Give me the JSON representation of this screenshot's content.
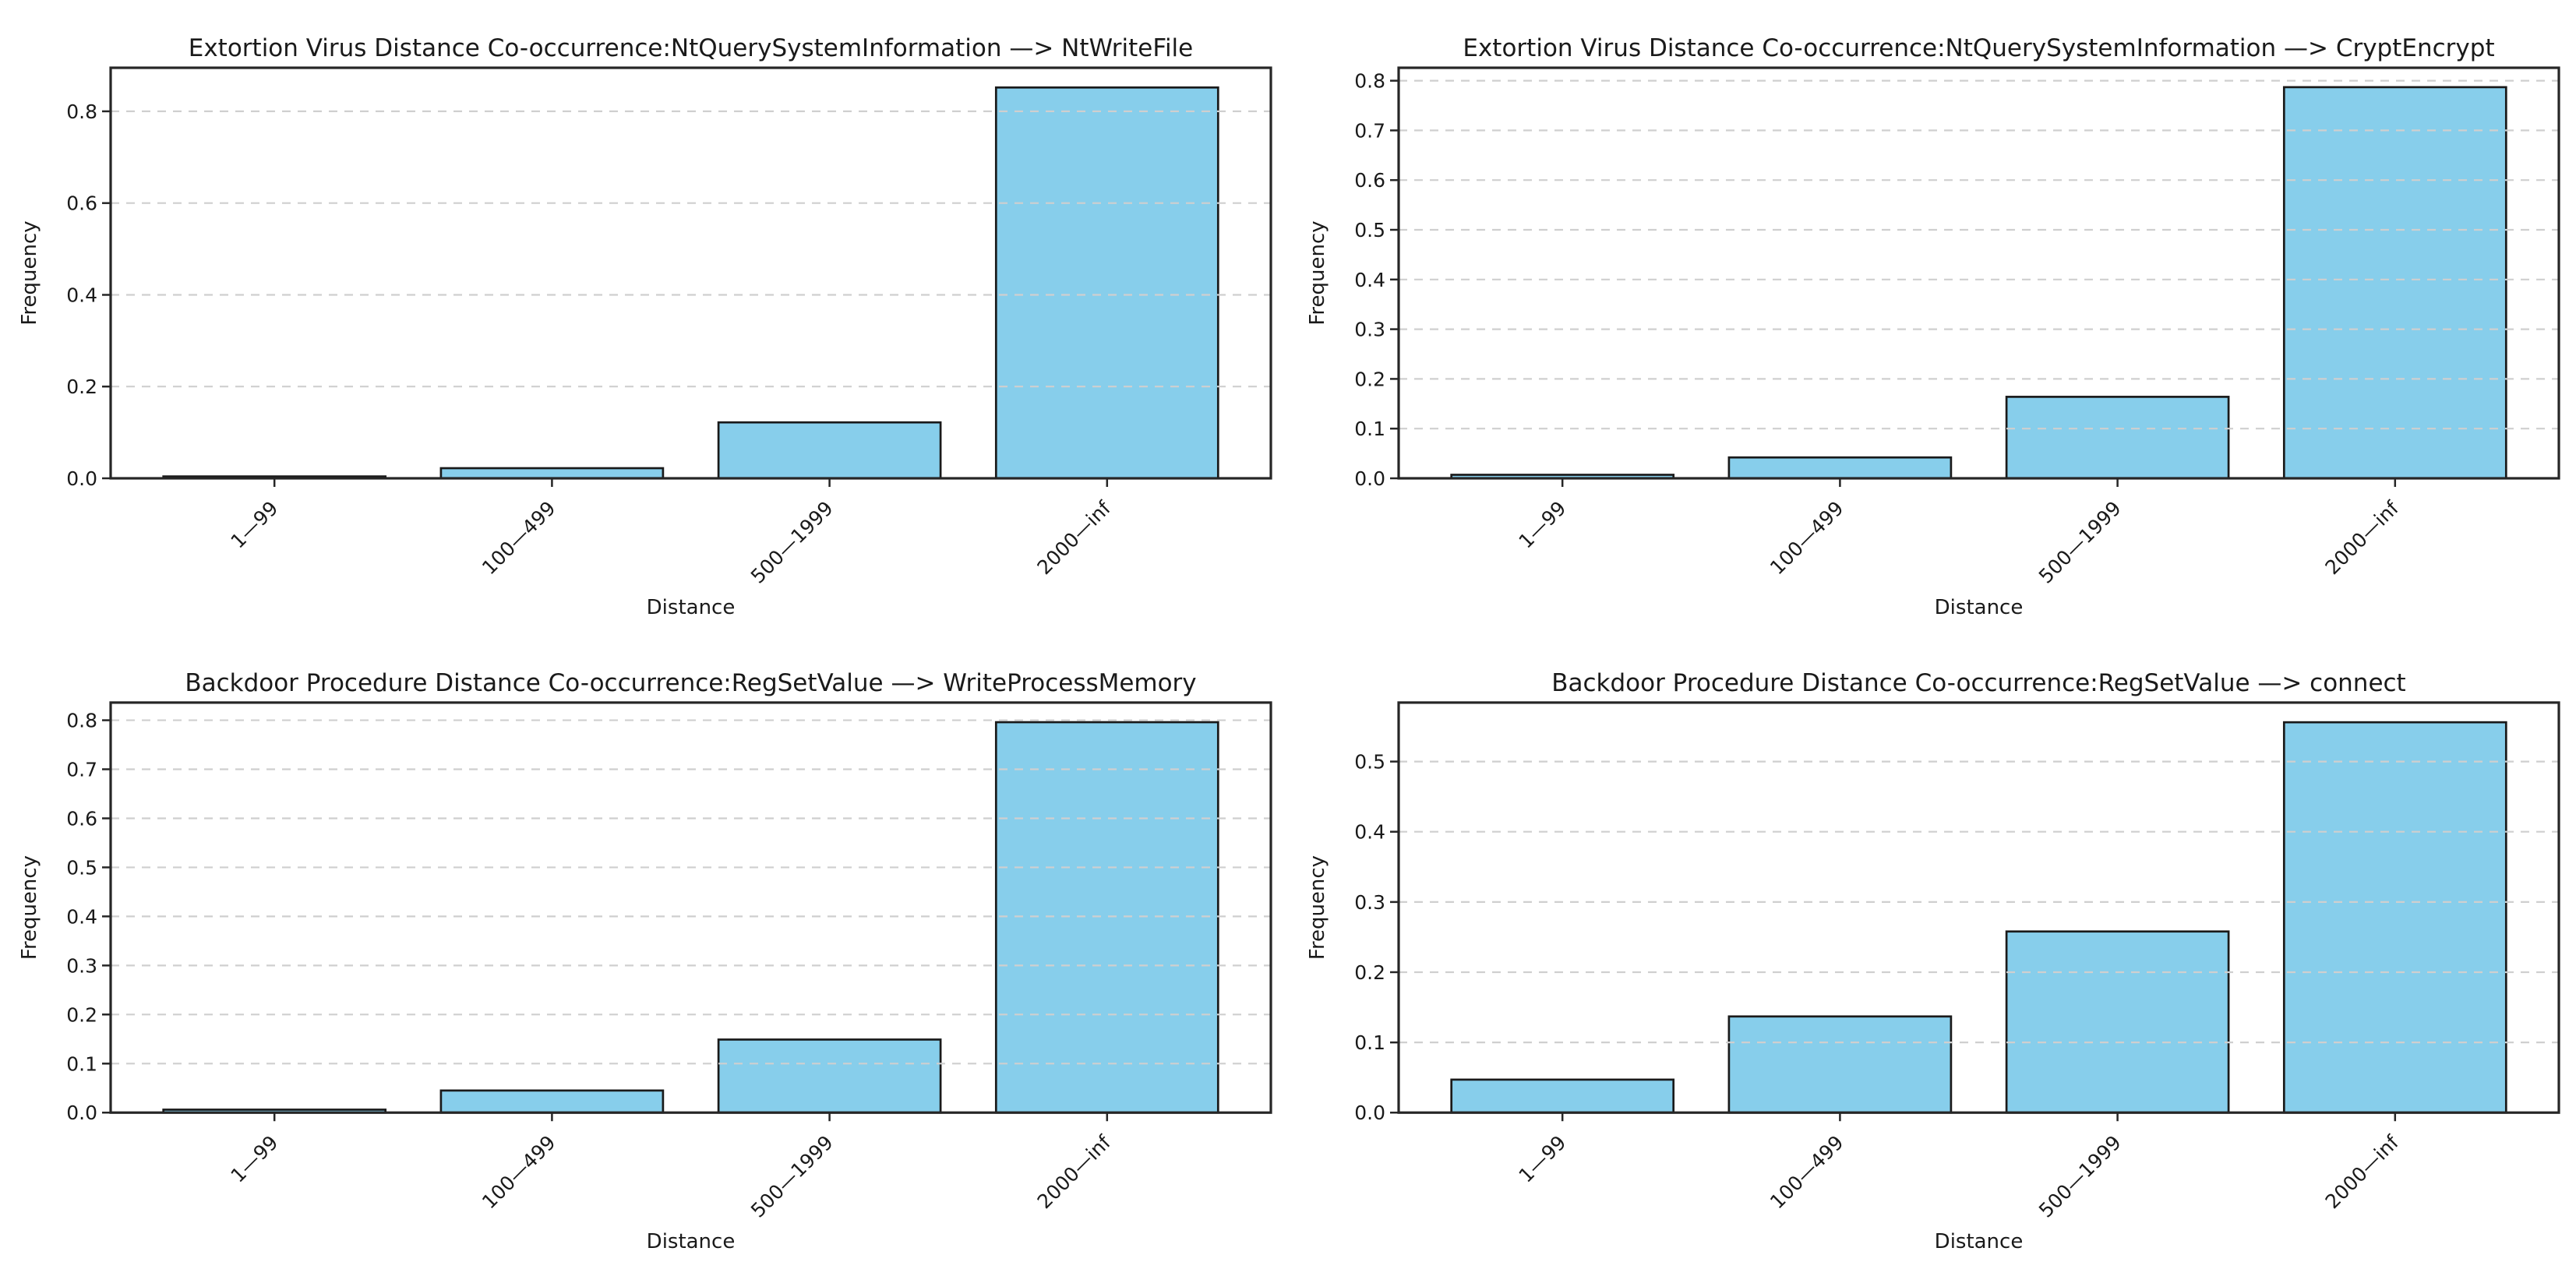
{
  "style": {
    "background": "#ffffff",
    "bar_fill": "#87CEEB",
    "bar_edge": "#1a1a1a",
    "grid_color": "#cfcfcf",
    "spine_color": "#262626",
    "text_color": "#1a1a1a"
  },
  "chart_data": [
    {
      "type": "bar",
      "title": "Extortion Virus Distance Co-occurrence:NtQuerySystemInformation —> NtWriteFile",
      "xlabel": "Distance",
      "ylabel": "Frequency",
      "categories": [
        "1—99",
        "100—499",
        "500—1999",
        "2000—inf"
      ],
      "values": [
        0.004,
        0.022,
        0.122,
        0.852
      ],
      "yticks": [
        0.0,
        0.2,
        0.4,
        0.6,
        0.8
      ],
      "ytick_labels": [
        "0.0",
        "0.2",
        "0.4",
        "0.6",
        "0.8"
      ],
      "ylim": [
        0,
        0.895
      ],
      "grid": true,
      "legend": "none"
    },
    {
      "type": "bar",
      "title": "Extortion Virus Distance Co-occurrence:NtQuerySystemInformation —> CryptEncrypt",
      "xlabel": "Distance",
      "ylabel": "Frequency",
      "categories": [
        "1—99",
        "100—499",
        "500—1999",
        "2000—inf"
      ],
      "values": [
        0.007,
        0.042,
        0.164,
        0.787
      ],
      "yticks": [
        0.0,
        0.1,
        0.2,
        0.3,
        0.4,
        0.5,
        0.6,
        0.7,
        0.8
      ],
      "ytick_labels": [
        "0.0",
        "0.1",
        "0.2",
        "0.3",
        "0.4",
        "0.5",
        "0.6",
        "0.7",
        "0.8"
      ],
      "ylim": [
        0,
        0.826
      ],
      "grid": true,
      "legend": "none"
    },
    {
      "type": "bar",
      "title": "Backdoor Procedure Distance Co-occurrence:RegSetValue —> WriteProcessMemory",
      "xlabel": "Distance",
      "ylabel": "Frequency",
      "categories": [
        "1—99",
        "100—499",
        "500—1999",
        "2000—inf"
      ],
      "values": [
        0.006,
        0.045,
        0.149,
        0.796
      ],
      "yticks": [
        0.0,
        0.1,
        0.2,
        0.3,
        0.4,
        0.5,
        0.6,
        0.7,
        0.8
      ],
      "ytick_labels": [
        "0.0",
        "0.1",
        "0.2",
        "0.3",
        "0.4",
        "0.5",
        "0.6",
        "0.7",
        "0.8"
      ],
      "ylim": [
        0,
        0.836
      ],
      "grid": true,
      "legend": "none"
    },
    {
      "type": "bar",
      "title": "Backdoor Procedure Distance Co-occurrence:RegSetValue —> connect",
      "xlabel": "Distance",
      "ylabel": "Frequency",
      "categories": [
        "1—99",
        "100—499",
        "500—1999",
        "2000—inf"
      ],
      "values": [
        0.047,
        0.137,
        0.258,
        0.556
      ],
      "yticks": [
        0.0,
        0.1,
        0.2,
        0.3,
        0.4,
        0.5
      ],
      "ytick_labels": [
        "0.0",
        "0.1",
        "0.2",
        "0.3",
        "0.4",
        "0.5"
      ],
      "ylim": [
        0,
        0.584
      ],
      "grid": true,
      "legend": "none"
    }
  ]
}
